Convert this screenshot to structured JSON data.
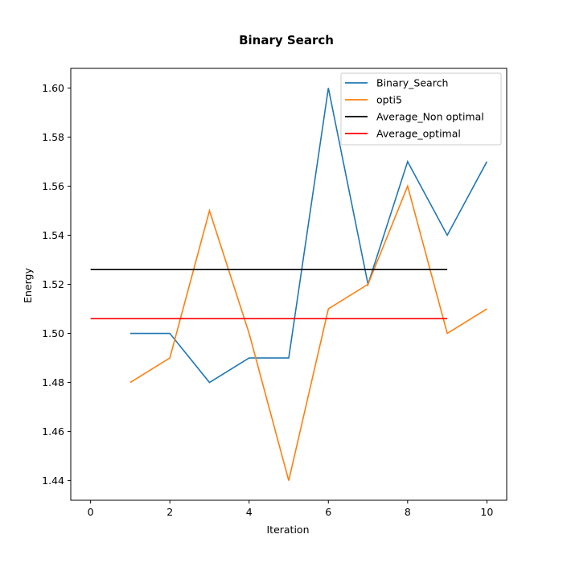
{
  "chart_data": {
    "type": "line",
    "title": "Binary Search",
    "xlabel": "Iteration",
    "ylabel": "Energy",
    "xlim": [
      -0.5,
      10.5
    ],
    "ylim": [
      1.432,
      1.608
    ],
    "xticks": [
      0,
      2,
      4,
      6,
      8,
      10
    ],
    "xtick_labels": [
      "0",
      "2",
      "4",
      "6",
      "8",
      "10"
    ],
    "yticks": [
      1.44,
      1.46,
      1.48,
      1.5,
      1.52,
      1.54,
      1.56,
      1.58,
      1.6
    ],
    "ytick_labels": [
      "1.44",
      "1.46",
      "1.48",
      "1.50",
      "1.52",
      "1.54",
      "1.56",
      "1.58",
      "1.60"
    ],
    "grid": false,
    "legend_position": "top-right",
    "series": [
      {
        "name": "Binary_Search",
        "color": "#1f77b4",
        "x": [
          1,
          2,
          3,
          4,
          5,
          6,
          7,
          8,
          9,
          10
        ],
        "y": [
          1.5,
          1.5,
          1.48,
          1.49,
          1.49,
          1.6,
          1.52,
          1.57,
          1.54,
          1.57
        ]
      },
      {
        "name": "opti5",
        "color": "#ff7f0e",
        "x": [
          1,
          2,
          3,
          4,
          5,
          6,
          7,
          8,
          9,
          10
        ],
        "y": [
          1.48,
          1.49,
          1.55,
          1.5,
          1.44,
          1.51,
          1.52,
          1.56,
          1.5,
          1.51
        ]
      },
      {
        "name": "Average_Non optimal",
        "color": "#000000",
        "x": [
          0,
          9
        ],
        "y": [
          1.526,
          1.526
        ]
      },
      {
        "name": "Average_optimal",
        "color": "#ff0000",
        "x": [
          0,
          9
        ],
        "y": [
          1.506,
          1.506
        ]
      }
    ]
  }
}
